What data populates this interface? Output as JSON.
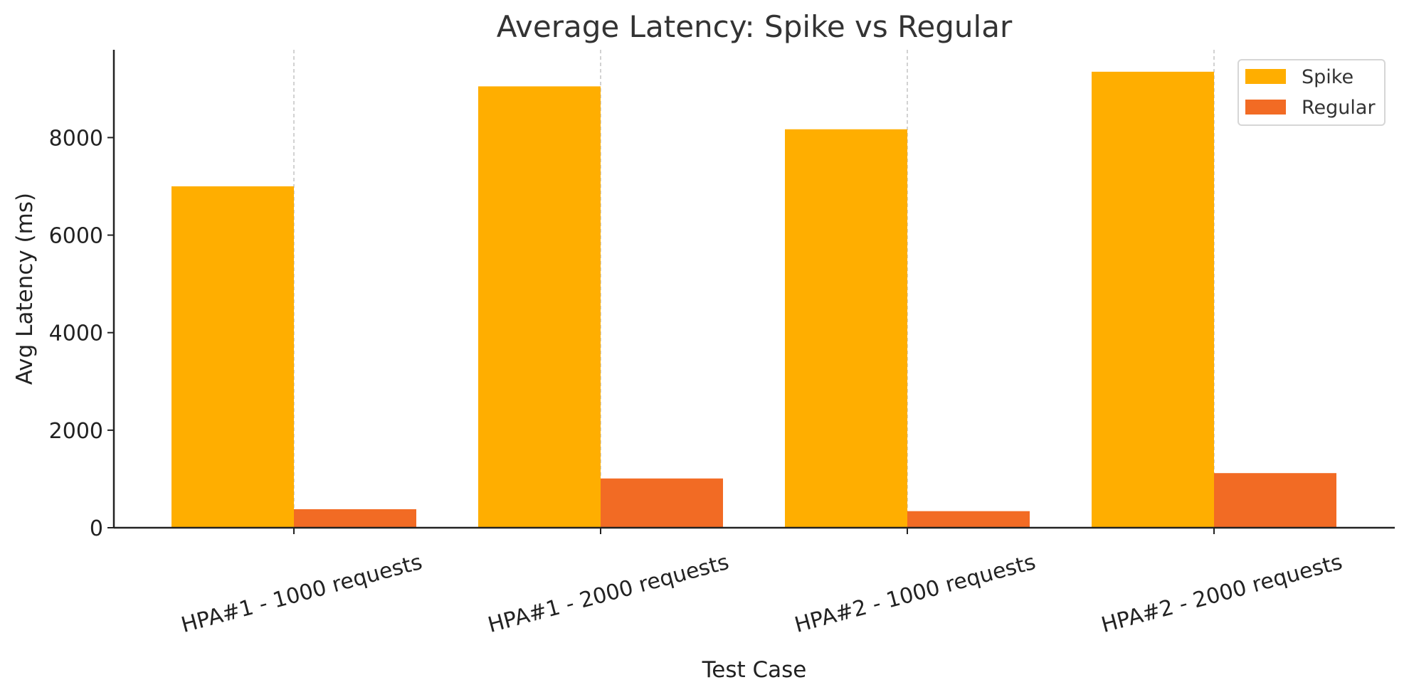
{
  "chart_data": {
    "type": "bar",
    "title": "Average Latency: Spike vs Regular",
    "xlabel": "Test Case",
    "ylabel": "Avg Latency (ms)",
    "categories": [
      "HPA#1 - 1000 requests",
      "HPA#1 - 2000 requests",
      "HPA#2 - 1000 requests",
      "HPA#2 - 2000 requests"
    ],
    "series": [
      {
        "name": "Spike",
        "color": "#FFAE00",
        "values": [
          7000,
          9050,
          8170,
          9350
        ]
      },
      {
        "name": "Regular",
        "color": "#F26B24",
        "values": [
          380,
          1010,
          340,
          1120
        ]
      }
    ],
    "ylim": [
      0,
      9800
    ],
    "yticks": [
      "0",
      "2000",
      "4000",
      "6000",
      "8000"
    ],
    "grid": "x-dashed",
    "legend": "top-right"
  }
}
